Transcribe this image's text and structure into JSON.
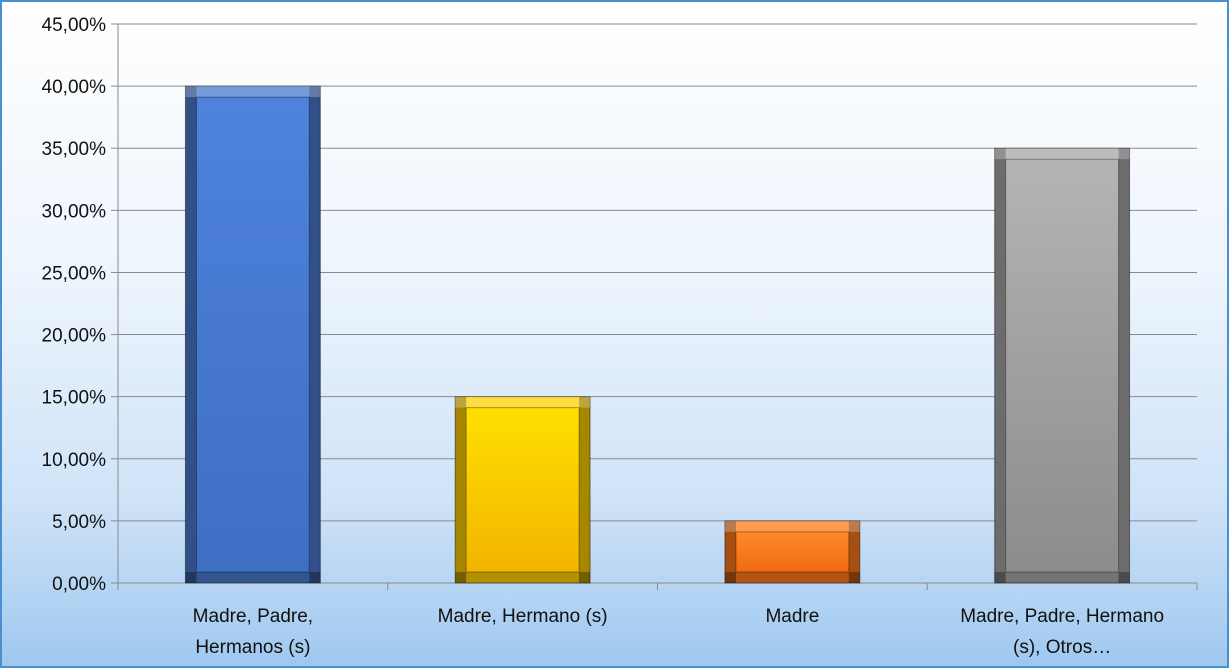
{
  "chart_data": {
    "type": "bar",
    "title": "",
    "xlabel": "",
    "ylabel": "",
    "categories": [
      [
        "Madre, Padre,",
        "Hermanos (s)"
      ],
      [
        "Madre, Hermano (s)"
      ],
      [
        "Madre"
      ],
      [
        "Madre, Padre, Hermano",
        "(s), Otros…"
      ]
    ],
    "values": [
      40,
      15,
      5,
      35
    ],
    "ylim": [
      0,
      45
    ],
    "y_ticks": [
      0,
      5,
      10,
      15,
      20,
      25,
      30,
      35,
      40,
      45
    ],
    "y_tick_labels": [
      "0,00%",
      "5,00%",
      "10,00%",
      "15,00%",
      "20,00%",
      "25,00%",
      "30,00%",
      "35,00%",
      "40,00%",
      "45,00%"
    ],
    "colors": [
      "#4a7bd0",
      "#ffd000",
      "#ff7a1a",
      "#a6a6a6"
    ],
    "grid": true,
    "legend": false
  }
}
